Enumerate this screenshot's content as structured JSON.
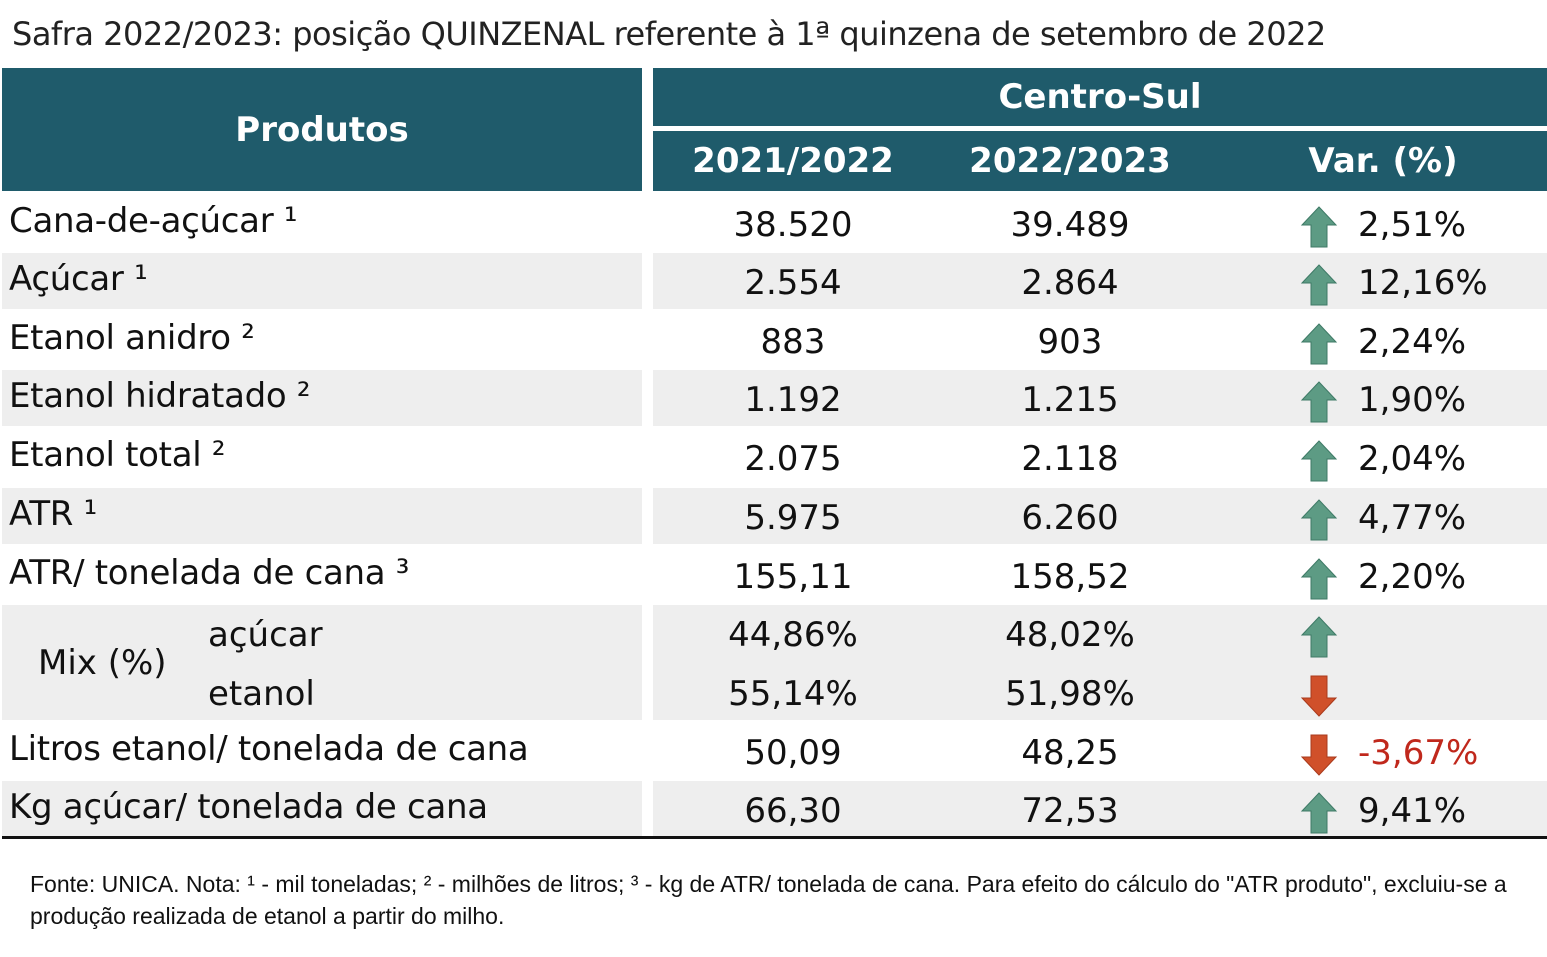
{
  "title": "Safra 2022/2023: posição QUINZENAL referente à 1ª quinzena de setembro de 2022",
  "header": {
    "produtos": "Produtos",
    "region": "Centro-Sul",
    "col1": "2021/2022",
    "col2": "2022/2023",
    "col3": "Var. (%)"
  },
  "colors": {
    "header_bg": "#1f5b6b",
    "up": "#5d9b84",
    "down": "#d0502a",
    "negative_text": "#c0281c"
  },
  "rows": [
    {
      "label": "Cana-de-açúcar ¹",
      "v1": "38.520",
      "v2": "39.489",
      "direction": "up",
      "var": "2,51%"
    },
    {
      "label": "Açúcar ¹",
      "v1": "2.554",
      "v2": "2.864",
      "direction": "up",
      "var": "12,16%"
    },
    {
      "label": "Etanol anidro ²",
      "v1": "883",
      "v2": "903",
      "direction": "up",
      "var": "2,24%"
    },
    {
      "label": "Etanol hidratado ²",
      "v1": "1.192",
      "v2": "1.215",
      "direction": "up",
      "var": "1,90%"
    },
    {
      "label": "Etanol total ²",
      "v1": "2.075",
      "v2": "2.118",
      "direction": "up",
      "var": "2,04%"
    },
    {
      "label": "ATR ¹",
      "v1": "5.975",
      "v2": "6.260",
      "direction": "up",
      "var": "4,77%"
    },
    {
      "label": "ATR/ tonelada de cana ³",
      "v1": "155,11",
      "v2": "158,52",
      "direction": "up",
      "var": "2,20%"
    }
  ],
  "mix": {
    "label": "Mix (%)",
    "acucar": {
      "label": "açúcar",
      "v1": "44,86%",
      "v2": "48,02%",
      "direction": "up"
    },
    "etanol": {
      "label": "etanol",
      "v1": "55,14%",
      "v2": "51,98%",
      "direction": "down"
    }
  },
  "rows2": [
    {
      "label": "Litros etanol/ tonelada de cana",
      "v1": "50,09",
      "v2": "48,25",
      "direction": "down",
      "var": "-3,67%"
    },
    {
      "label": "Kg açúcar/ tonelada de cana",
      "v1": "66,30",
      "v2": "72,53",
      "direction": "up",
      "var": "9,41%"
    }
  ],
  "footnote": "Fonte: UNICA. Nota: ¹ - mil toneladas; ² - milhões de litros; ³ - kg de ATR/ tonelada de cana. Para efeito do cálculo do \"ATR produto\", excluiu-se a produção realizada de etanol a partir do milho."
}
